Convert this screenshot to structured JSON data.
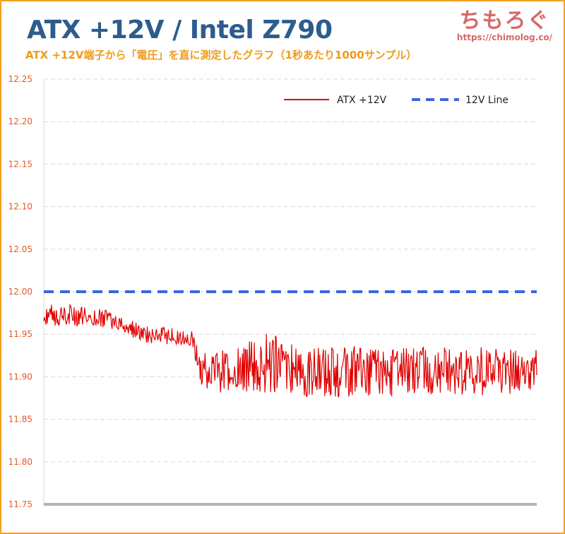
{
  "header": {
    "title": "ATX +12V / Intel Z790",
    "subtitle": "ATX +12V端子から「電圧」を直に測定したグラフ（1秒あたり1000サンプル）",
    "logo_text": "ちもろぐ",
    "logo_url": "https://chimolog.co/"
  },
  "colors": {
    "title": "#2d5c8e",
    "subtitle": "#f09a1a",
    "frame": "#f0a020",
    "series_atx": "#e00000",
    "series_ref": "#3f64e0",
    "tick": "#e05a2a",
    "grid": "#d9d9d9",
    "baseline": "#b3b3b3"
  },
  "chart_data": {
    "type": "line",
    "title": "",
    "xlabel": "",
    "ylabel": "",
    "ylim": [
      11.75,
      12.25
    ],
    "yticks": [
      "12.25",
      "12.20",
      "12.15",
      "12.10",
      "12.05",
      "12.00",
      "11.95",
      "11.90",
      "11.85",
      "11.80",
      "11.75"
    ],
    "grid": "horizontal-dashed",
    "legend_position": "top-right",
    "x": [
      0,
      0.05,
      0.1,
      0.15,
      0.2,
      0.25,
      0.3,
      0.32,
      0.35,
      0.4,
      0.45,
      0.5,
      0.55,
      0.6,
      0.65,
      0.7,
      0.75,
      0.8,
      0.85,
      0.9,
      0.95,
      1.0
    ],
    "series": [
      {
        "name": "ATX +12V",
        "style": "solid",
        "values": [
          11.975,
          11.972,
          11.97,
          11.965,
          11.95,
          11.948,
          11.945,
          11.91,
          11.905,
          11.905,
          11.915,
          11.91,
          11.908,
          11.91,
          11.912,
          11.91,
          11.91,
          11.912,
          11.91,
          11.91,
          11.91,
          11.91
        ],
        "band_low": [
          11.96,
          11.96,
          11.96,
          11.955,
          11.94,
          11.938,
          11.935,
          11.89,
          11.88,
          11.88,
          11.88,
          11.88,
          11.875,
          11.875,
          11.875,
          11.875,
          11.875,
          11.878,
          11.878,
          11.878,
          11.878,
          11.88
        ],
        "band_high": [
          11.985,
          11.985,
          11.982,
          11.975,
          11.96,
          11.958,
          11.955,
          11.93,
          11.93,
          11.935,
          11.955,
          11.94,
          11.935,
          11.935,
          11.938,
          11.935,
          11.935,
          11.935,
          11.935,
          11.935,
          11.932,
          11.932
        ]
      },
      {
        "name": "12V Line",
        "style": "dashed",
        "values": [
          12.0,
          12.0,
          12.0,
          12.0,
          12.0,
          12.0,
          12.0,
          12.0,
          12.0,
          12.0,
          12.0,
          12.0,
          12.0,
          12.0,
          12.0,
          12.0,
          12.0,
          12.0,
          12.0,
          12.0,
          12.0,
          12.0
        ]
      }
    ]
  }
}
